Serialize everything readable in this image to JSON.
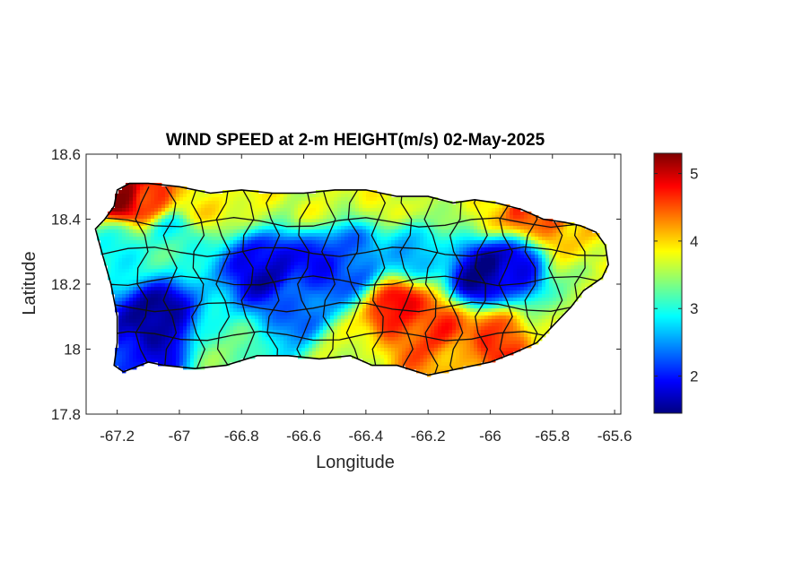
{
  "chart_data": {
    "type": "heatmap",
    "title": "WIND SPEED at 2-m HEIGHT(m/s) 02-May-2025",
    "xlabel": "Longitude",
    "ylabel": "Latitude",
    "xlim": [
      -67.3,
      -65.58
    ],
    "ylim": [
      17.8,
      18.6
    ],
    "xticks": [
      -67.2,
      -67,
      -66.8,
      -66.6,
      -66.4,
      -66.2,
      -66,
      -65.8,
      -65.6
    ],
    "xtick_labels": [
      "-67.2",
      "-67",
      "-66.8",
      "-66.6",
      "-66.4",
      "-66.2",
      "-66",
      "-65.8",
      "-65.6"
    ],
    "yticks": [
      17.8,
      18,
      18.2,
      18.4,
      18.6
    ],
    "ytick_labels": [
      "17.8",
      "18",
      "18.2",
      "18.4",
      "18.6"
    ],
    "colormap": "jet",
    "clim": [
      1.45,
      5.3
    ],
    "colorbar_ticks": [
      2,
      3,
      4,
      5
    ],
    "colorbar_tick_labels": [
      "2",
      "3",
      "4",
      "5"
    ],
    "grid": false,
    "background_level": 3.0,
    "features": [
      {
        "lon": -67.18,
        "lat": 18.48,
        "value": 5.3
      },
      {
        "lon": -67.1,
        "lat": 18.47,
        "value": 4.6
      },
      {
        "lon": -66.95,
        "lat": 18.46,
        "value": 3.9
      },
      {
        "lon": -66.75,
        "lat": 18.47,
        "value": 3.8
      },
      {
        "lon": -66.55,
        "lat": 18.47,
        "value": 3.7
      },
      {
        "lon": -66.35,
        "lat": 18.47,
        "value": 3.8
      },
      {
        "lon": -66.15,
        "lat": 18.46,
        "value": 3.6
      },
      {
        "lon": -66.0,
        "lat": 18.45,
        "value": 3.9
      },
      {
        "lon": -65.88,
        "lat": 18.44,
        "value": 4.6
      },
      {
        "lon": -65.78,
        "lat": 18.42,
        "value": 4.7
      },
      {
        "lon": -65.72,
        "lat": 18.38,
        "value": 4.0
      },
      {
        "lon": -65.65,
        "lat": 18.3,
        "value": 3.9
      },
      {
        "lon": -65.7,
        "lat": 18.2,
        "value": 3.5
      },
      {
        "lon": -67.08,
        "lat": 18.08,
        "value": 1.5
      },
      {
        "lon": -67.18,
        "lat": 18.0,
        "value": 2.0
      },
      {
        "lon": -66.72,
        "lat": 18.25,
        "value": 1.7
      },
      {
        "lon": -66.55,
        "lat": 18.24,
        "value": 2.0
      },
      {
        "lon": -66.63,
        "lat": 18.14,
        "value": 2.3
      },
      {
        "lon": -66.45,
        "lat": 18.28,
        "value": 2.2
      },
      {
        "lon": -66.25,
        "lat": 18.3,
        "value": 2.7
      },
      {
        "lon": -66.02,
        "lat": 18.23,
        "value": 1.5
      },
      {
        "lon": -65.92,
        "lat": 18.25,
        "value": 1.9
      },
      {
        "lon": -66.3,
        "lat": 18.12,
        "value": 4.8
      },
      {
        "lon": -66.18,
        "lat": 18.06,
        "value": 4.6
      },
      {
        "lon": -65.98,
        "lat": 18.03,
        "value": 4.7
      },
      {
        "lon": -66.1,
        "lat": 17.98,
        "value": 4.2
      },
      {
        "lon": -66.45,
        "lat": 18.0,
        "value": 3.7
      },
      {
        "lon": -66.85,
        "lat": 18.0,
        "value": 3.3
      },
      {
        "lon": -67.2,
        "lat": 18.32,
        "value": 3.0
      },
      {
        "lon": -67.02,
        "lat": 18.35,
        "value": 3.0
      },
      {
        "lon": -65.78,
        "lat": 18.08,
        "value": 3.5
      }
    ],
    "coastline": [
      [
        -67.27,
        18.37
      ],
      [
        -67.24,
        18.4
      ],
      [
        -67.21,
        18.44
      ],
      [
        -67.2,
        18.49
      ],
      [
        -67.16,
        18.51
      ],
      [
        -67.1,
        18.51
      ],
      [
        -67.0,
        18.5
      ],
      [
        -66.9,
        18.48
      ],
      [
        -66.8,
        18.49
      ],
      [
        -66.7,
        18.48
      ],
      [
        -66.6,
        18.48
      ],
      [
        -66.5,
        18.49
      ],
      [
        -66.4,
        18.49
      ],
      [
        -66.3,
        18.47
      ],
      [
        -66.2,
        18.47
      ],
      [
        -66.12,
        18.45
      ],
      [
        -66.05,
        18.46
      ],
      [
        -65.98,
        18.45
      ],
      [
        -65.9,
        18.43
      ],
      [
        -65.83,
        18.4
      ],
      [
        -65.76,
        18.39
      ],
      [
        -65.71,
        18.38
      ],
      [
        -65.66,
        18.36
      ],
      [
        -65.63,
        18.32
      ],
      [
        -65.62,
        18.26
      ],
      [
        -65.64,
        18.22
      ],
      [
        -65.7,
        18.18
      ],
      [
        -65.74,
        18.13
      ],
      [
        -65.79,
        18.08
      ],
      [
        -65.85,
        18.02
      ],
      [
        -65.92,
        17.99
      ],
      [
        -66.0,
        17.96
      ],
      [
        -66.1,
        17.94
      ],
      [
        -66.2,
        17.92
      ],
      [
        -66.3,
        17.95
      ],
      [
        -66.38,
        17.95
      ],
      [
        -66.45,
        17.98
      ],
      [
        -66.55,
        17.97
      ],
      [
        -66.65,
        17.98
      ],
      [
        -66.75,
        17.98
      ],
      [
        -66.85,
        17.95
      ],
      [
        -66.95,
        17.94
      ],
      [
        -67.05,
        17.95
      ],
      [
        -67.1,
        17.96
      ],
      [
        -67.18,
        17.93
      ],
      [
        -67.21,
        17.95
      ],
      [
        -67.2,
        18.02
      ],
      [
        -67.2,
        18.1
      ],
      [
        -67.22,
        18.2
      ],
      [
        -67.25,
        18.3
      ]
    ]
  }
}
